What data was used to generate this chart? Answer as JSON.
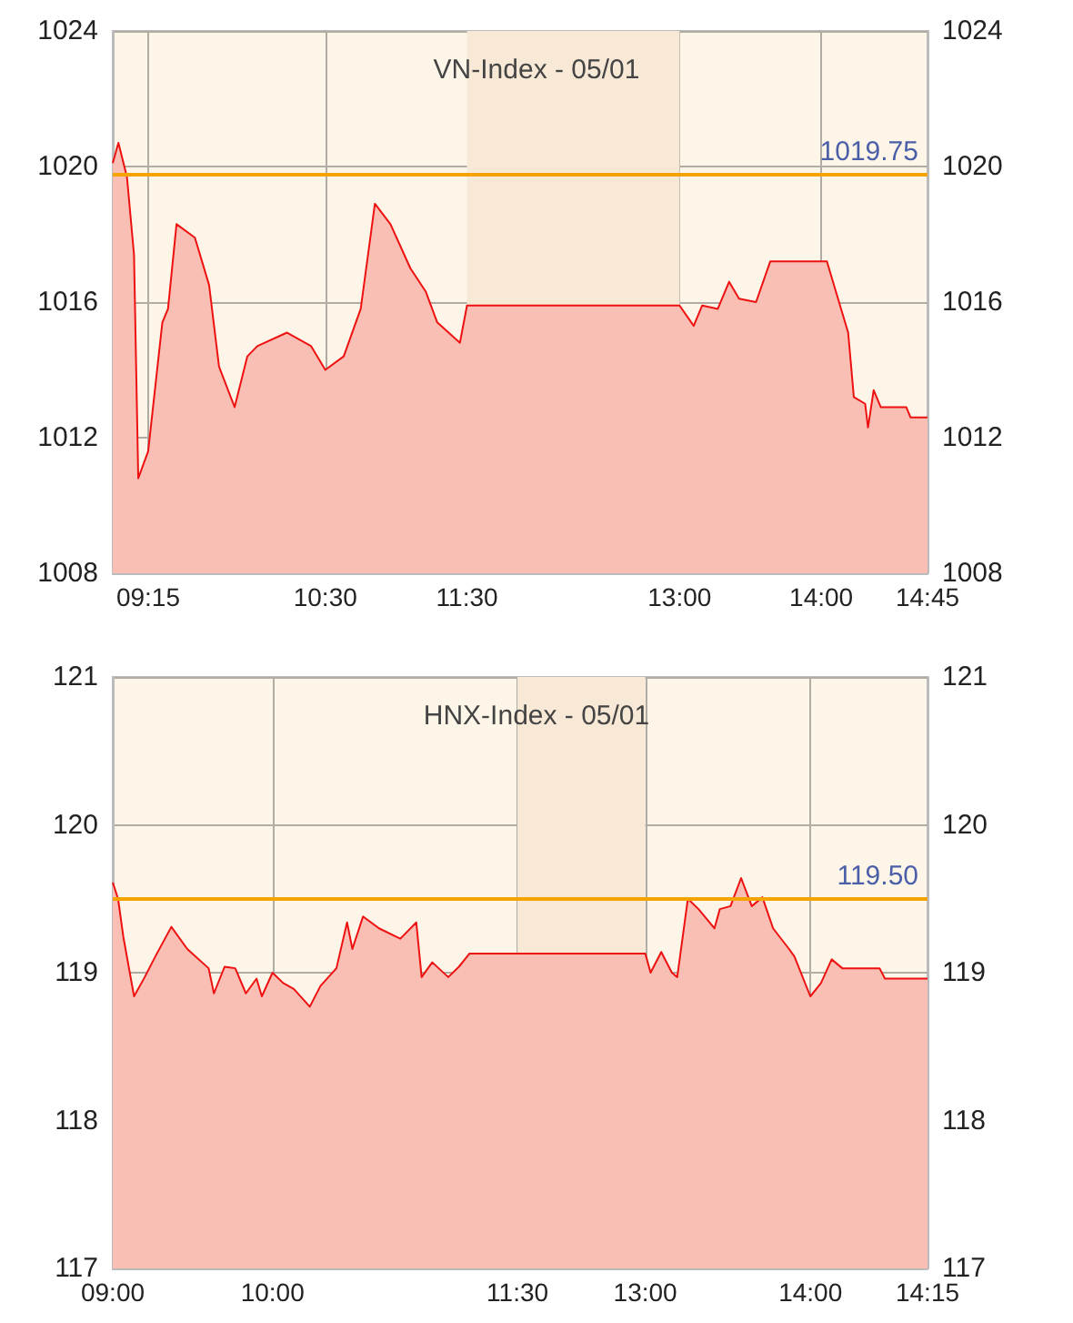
{
  "chart_data": [
    {
      "type": "area",
      "title": "VN-Index - 05/01",
      "color": "#ee1111",
      "x": [
        9.0,
        9.04,
        9.1,
        9.15,
        9.18,
        9.25,
        9.35,
        9.39,
        9.45,
        9.58,
        9.68,
        9.75,
        9.86,
        9.95,
        10.02,
        10.23,
        10.4,
        10.5,
        10.63,
        10.75,
        10.85,
        10.96,
        11.1,
        11.21,
        11.29,
        11.45,
        11.5,
        13.0,
        13.1,
        13.16,
        13.27,
        13.35,
        13.42,
        13.54,
        13.64,
        13.86,
        14.04,
        14.14,
        14.19,
        14.23,
        14.31,
        14.33,
        14.37,
        14.42,
        14.6,
        14.63,
        14.75
      ],
      "values": [
        1020.1,
        1020.7,
        1019.7,
        1017.4,
        1010.8,
        1011.6,
        1015.4,
        1015.8,
        1018.3,
        1017.9,
        1016.5,
        1014.1,
        1012.9,
        1014.4,
        1014.7,
        1015.1,
        1014.7,
        1014.0,
        1014.4,
        1015.8,
        1018.9,
        1018.3,
        1017.0,
        1016.3,
        1015.4,
        1014.8,
        1015.9,
        1015.9,
        1015.3,
        1015.9,
        1015.8,
        1016.6,
        1016.1,
        1016.0,
        1017.2,
        1017.2,
        1017.2,
        1015.8,
        1015.1,
        1013.2,
        1013.0,
        1012.3,
        1013.4,
        1012.9,
        1012.9,
        1012.6,
        1012.6
      ],
      "xlim": [
        9,
        14.75
      ],
      "xticks": [
        {
          "value": 9.25,
          "label": "09:15"
        },
        {
          "value": 10.5,
          "label": "10:30"
        },
        {
          "value": 11.5,
          "label": "11:30"
        },
        {
          "value": 13,
          "label": "13:00"
        },
        {
          "value": 14,
          "label": "14:00"
        },
        {
          "value": 14.75,
          "label": "14:45"
        }
      ],
      "ylim": [
        1008,
        1024
      ],
      "yticks": [
        1008,
        1012,
        1016,
        1020,
        1024
      ],
      "y2lim": [
        1008,
        1024
      ],
      "y2ticks": [
        1008,
        1012,
        1016,
        1020,
        1024
      ],
      "ref_lines": [
        {
          "axis": "y",
          "value": 1019.75,
          "label": "1019.75",
          "color": "#f5a300"
        }
      ],
      "bands": [
        {
          "axis": "x",
          "from": 11.5,
          "to": 13,
          "color": "#f8e9d6"
        }
      ],
      "grid": true
    },
    {
      "type": "area",
      "title": "HNX-Index - 05/01",
      "color": "#ee1111",
      "categories": [
        "09:00",
        null,
        null,
        null,
        null,
        null,
        null,
        null,
        null,
        null,
        null,
        null,
        null,
        null,
        null,
        null,
        null,
        null,
        null,
        null,
        null,
        null,
        null,
        null,
        null,
        null,
        null,
        null,
        null,
        null,
        "10:00",
        null,
        null,
        null,
        null,
        null,
        null,
        null,
        null,
        null,
        null,
        null,
        null,
        null,
        null,
        null,
        null,
        null,
        null,
        null,
        null,
        null,
        null,
        null,
        null,
        null,
        null,
        null,
        null,
        null,
        null,
        null,
        null,
        null,
        null,
        null,
        null,
        null,
        null,
        null,
        null,
        null,
        null,
        null,
        null,
        null,
        "11:30",
        null,
        null,
        null,
        null,
        null,
        null,
        null,
        null,
        null,
        null,
        null,
        null,
        null,
        null,
        null,
        null,
        null,
        null,
        null,
        null,
        null,
        null,
        null,
        "13:00",
        null,
        null,
        null,
        null,
        null,
        null,
        null,
        null,
        null,
        null,
        null,
        null,
        null,
        null,
        null,
        null,
        null,
        null,
        null,
        null,
        null,
        null,
        null,
        null,
        null,
        null,
        null,
        null,
        null,
        null,
        "14:00",
        null,
        null,
        null,
        null,
        null,
        null,
        null,
        null,
        null,
        null,
        null,
        null,
        null,
        null,
        null,
        null,
        null,
        null,
        null,
        null,
        null,
        "14:15"
      ],
      "values": [
        119.61,
        119.5,
        119.24,
        null,
        118.84,
        null,
        118.97,
        null,
        119.11,
        null,
        null,
        119.31,
        null,
        null,
        119.16,
        null,
        null,
        null,
        119.03,
        118.86,
        null,
        119.04,
        null,
        119.03,
        null,
        118.86,
        null,
        118.96,
        118.84,
        null,
        119.0,
        null,
        118.93,
        null,
        118.89,
        null,
        null,
        118.77,
        null,
        118.91,
        null,
        null,
        119.03,
        null,
        119.34,
        119.16,
        null,
        119.38,
        null,
        null,
        119.3,
        null,
        null,
        null,
        119.23,
        null,
        null,
        119.34,
        118.97,
        null,
        119.07,
        null,
        null,
        118.97,
        null,
        119.04,
        null,
        119.13,
        null,
        null,
        null,
        null,
        null,
        null,
        null,
        null,
        null,
        null,
        null,
        null,
        null,
        null,
        null,
        null,
        null,
        null,
        null,
        null,
        null,
        null,
        null,
        null,
        null,
        null,
        null,
        null,
        null,
        null,
        null,
        null,
        119.13,
        119.0,
        null,
        119.14,
        null,
        119.0,
        118.97,
        null,
        119.5,
        null,
        119.43,
        null,
        null,
        119.3,
        119.43,
        null,
        119.45,
        null,
        119.64,
        null,
        119.45,
        null,
        119.51,
        null,
        119.3,
        null,
        null,
        119.16,
        119.11,
        null,
        null,
        118.84,
        null,
        118.93,
        null,
        119.09,
        null,
        119.03,
        null,
        null,
        null,
        null,
        null,
        null,
        119.03,
        118.96,
        null,
        null,
        null,
        null,
        null,
        null,
        null,
        118.96
      ],
      "ylim": [
        117,
        121
      ],
      "yticks": [
        117,
        118,
        119,
        120,
        121
      ],
      "y2lim": [
        117,
        121
      ],
      "y2ticks": [
        117,
        118,
        119,
        120,
        121
      ],
      "ref_lines": [
        {
          "axis": "y",
          "value": 119.5,
          "label": "119.50",
          "color": "#f5a300"
        }
      ],
      "bands": [
        {
          "axis": "x",
          "from": "11:30",
          "to": "13:00",
          "color": "#f8e9d6"
        }
      ],
      "grid": true
    }
  ]
}
